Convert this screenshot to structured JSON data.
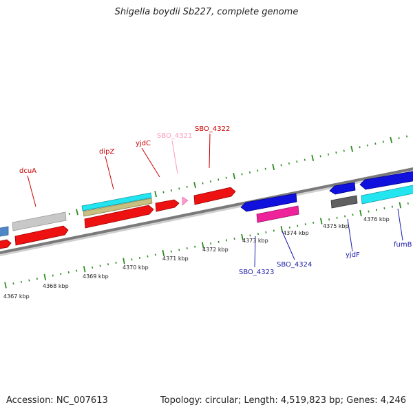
{
  "title": "Shigella boydii Sb227, complete genome",
  "footer": {
    "accession": "Accession: NC_007613",
    "summary": "Topology: circular; Length: 4,519,823 bp; Genes: 4,246"
  },
  "colors": {
    "backbone": "#8c8c8c",
    "tick": "#2e8b22",
    "plus_label": "#cc0000",
    "minus_label": "#1a1aaa",
    "pseudo_label": "#ff99bb"
  },
  "scale": {
    "unit": "kbp",
    "labels": [
      "4367 kbp",
      "4368 kbp",
      "4369 kbp",
      "4370 kbp",
      "4371 kbp",
      "4372 kbp",
      "4373 kbp",
      "4374 kbp",
      "4375 kbp",
      "4376 kbp"
    ]
  },
  "gene_labels": [
    {
      "name": "dcuA",
      "strand": "plus"
    },
    {
      "name": "dipZ",
      "strand": "plus"
    },
    {
      "name": "yjdC",
      "strand": "plus"
    },
    {
      "name": "SBO_4321",
      "strand": "pseudo"
    },
    {
      "name": "SBO_4322",
      "strand": "plus"
    },
    {
      "name": "SBO_4323",
      "strand": "minus"
    },
    {
      "name": "SBO_4324",
      "strand": "minus"
    },
    {
      "name": "yjdF",
      "strand": "minus"
    },
    {
      "name": "fumB",
      "strand": "minus"
    }
  ]
}
